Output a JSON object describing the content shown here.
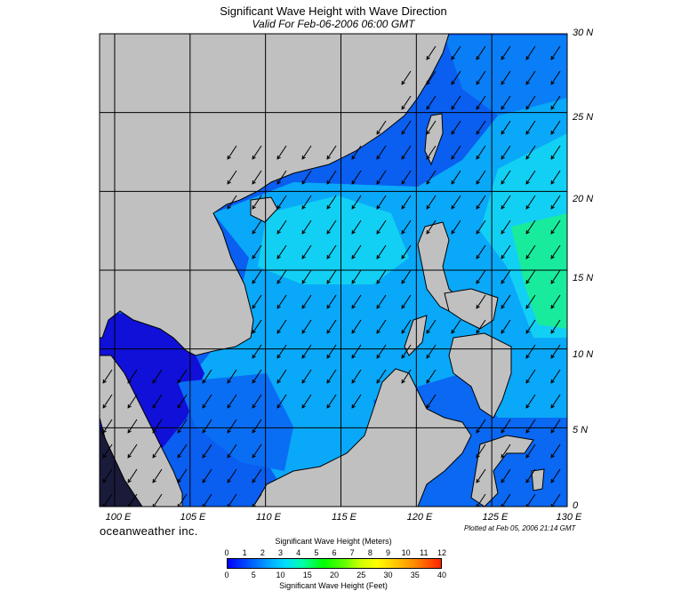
{
  "title": "Significant Wave Height with Wave Direction",
  "subtitle": "Valid For Feb-06-2006 06:00 GMT",
  "lat_labels": [
    "30 N",
    "25 N",
    "20 N",
    "15 N",
    "10 N",
    "5 N",
    "0"
  ],
  "lon_labels": [
    "100 E",
    "105 E",
    "110 E",
    "115 E",
    "120 E",
    "125 E",
    "130 E"
  ],
  "brand": "oceanweather inc.",
  "plotted": "Plotted at Feb 05, 2006 21:14 GMT",
  "legend": {
    "meters_title": "Significant Wave Height (Meters)",
    "feet_title": "Significant Wave Height (Feet)",
    "meters_ticks": [
      "0",
      "1",
      "2",
      "3",
      "4",
      "5",
      "6",
      "7",
      "8",
      "9",
      "10",
      "11",
      "12"
    ],
    "feet_ticks": [
      "0",
      "5",
      "10",
      "15",
      "20",
      "25",
      "30",
      "35",
      "40"
    ]
  },
  "map": {
    "lon_range": [
      99,
      130
    ],
    "lat_range": [
      0,
      30
    ],
    "colors": {
      "land": "#c0c0c0",
      "grid": "#000000",
      "arrow": "#000000",
      "deep_blue": "#1010d8",
      "blue": "#0a5ef0",
      "light_blue": "#0aa8f8",
      "cyan": "#12d8f0",
      "teal_green": "#18f090",
      "dark_coast": "#000060"
    },
    "wave_direction": "from northeast to southwest"
  }
}
